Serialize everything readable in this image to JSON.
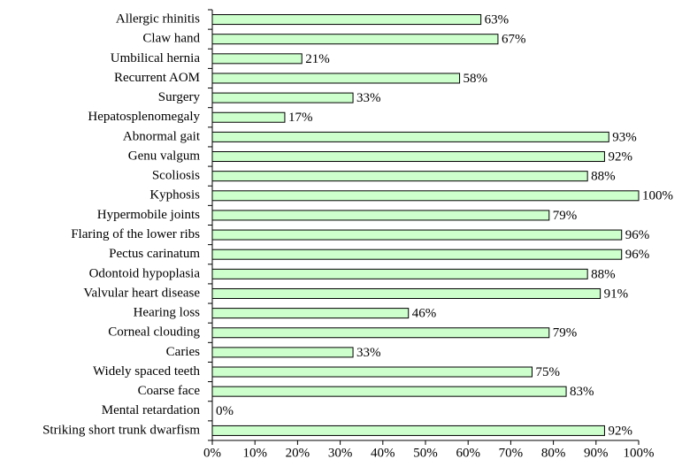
{
  "chart_data": {
    "type": "bar",
    "orientation": "horizontal",
    "categories": [
      "Allergic rhinitis",
      "Claw hand",
      "Umbilical hernia",
      "Recurrent AOM",
      "Surgery",
      "Hepatosplenomegaly",
      "Abnormal gait",
      "Genu valgum",
      "Scoliosis",
      "Kyphosis",
      "Hypermobile joints",
      "Flaring of the lower ribs",
      "Pectus carinatum",
      "Odontoid hypoplasia",
      "Valvular heart disease",
      "Hearing loss",
      "Corneal clouding",
      "Caries",
      "Widely spaced teeth",
      "Coarse face",
      "Mental retardation",
      "Striking short trunk dwarfism"
    ],
    "values": [
      63,
      67,
      21,
      58,
      33,
      17,
      93,
      92,
      88,
      100,
      79,
      96,
      96,
      88,
      91,
      46,
      79,
      33,
      75,
      83,
      0,
      92
    ],
    "value_labels": [
      "63%",
      "67%",
      "21%",
      "58%",
      "33%",
      "17%",
      "93%",
      "92%",
      "88%",
      "100%",
      "79%",
      "96%",
      "96%",
      "88%",
      "91%",
      "46%",
      "79%",
      "33%",
      "75%",
      "83%",
      "0%",
      "92%"
    ],
    "color": "#ccffcc",
    "xlim": [
      0,
      100
    ],
    "xticks": [
      {
        "value": 0,
        "label": "0%"
      },
      {
        "value": 10,
        "label": "10%"
      },
      {
        "value": 20,
        "label": "20%"
      },
      {
        "value": 30,
        "label": "30%"
      },
      {
        "value": 40,
        "label": "40%"
      },
      {
        "value": 50,
        "label": "50%"
      },
      {
        "value": 60,
        "label": "60%"
      },
      {
        "value": 70,
        "label": "70%"
      },
      {
        "value": 80,
        "label": "80%"
      },
      {
        "value": 90,
        "label": "90%"
      },
      {
        "value": 100,
        "label": "100%"
      }
    ]
  }
}
